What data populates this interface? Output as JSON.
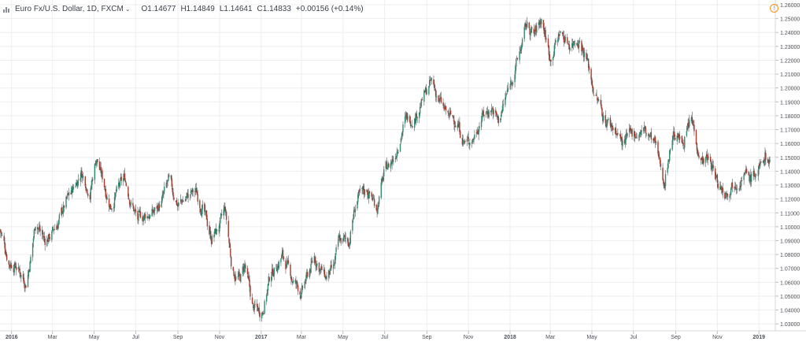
{
  "header": {
    "title": "Euro Fx/U.S. Dollar, 1D, FXCM",
    "chevron": "⌄",
    "open": "O1.14677",
    "high": "H1.14849",
    "low": "L1.14641",
    "close": "C1.14833",
    "change": "+0.00156 (+0.14%)",
    "warning_glyph": "!"
  },
  "colors": {
    "up": "#2f8a6e",
    "down": "#a23b2a",
    "grid": "#eeeeee",
    "axis_text": "#4a4f59",
    "wick": "#55595f"
  },
  "chart_data": {
    "type": "candlestick",
    "symbol": "Euro Fx/U.S. Dollar",
    "interval": "1D",
    "source": "FXCM",
    "ylim": [
      1.025,
      1.26
    ],
    "yticks": [
      1.03,
      1.04,
      1.05,
      1.06,
      1.07,
      1.08,
      1.09,
      1.1,
      1.11,
      1.12,
      1.13,
      1.14,
      1.15,
      1.16,
      1.17,
      1.18,
      1.19,
      1.2,
      1.21,
      1.22,
      1.23,
      1.24,
      1.25,
      1.26
    ],
    "ytick_labels": [
      "1.03000",
      "1.04000",
      "1.05000",
      "1.06000",
      "1.07000",
      "1.08000",
      "1.09000",
      "1.10000",
      "1.11000",
      "1.12000",
      "1.13000",
      "1.14000",
      "1.15000",
      "1.16000",
      "1.17000",
      "1.18000",
      "1.19000",
      "1.20000",
      "1.21000",
      "1.22000",
      "1.23000",
      "1.24000",
      "1.25000",
      "1.26000"
    ],
    "xlim": [
      "2015-12-15",
      "2019-01-25"
    ],
    "xticks": [
      {
        "date": "2016-01-01",
        "label": "2016",
        "bold": true
      },
      {
        "date": "2016-03-01",
        "label": "Mar"
      },
      {
        "date": "2016-05-01",
        "label": "May"
      },
      {
        "date": "2016-07-01",
        "label": "Jul"
      },
      {
        "date": "2016-09-01",
        "label": "Sep"
      },
      {
        "date": "2016-11-01",
        "label": "Nov"
      },
      {
        "date": "2017-01-01",
        "label": "2017",
        "bold": true
      },
      {
        "date": "2017-03-01",
        "label": "Mar"
      },
      {
        "date": "2017-05-01",
        "label": "May"
      },
      {
        "date": "2017-07-01",
        "label": "Jul"
      },
      {
        "date": "2017-09-01",
        "label": "Sep"
      },
      {
        "date": "2017-11-01",
        "label": "Nov"
      },
      {
        "date": "2018-01-01",
        "label": "2018",
        "bold": true
      },
      {
        "date": "2018-03-01",
        "label": "Mar"
      },
      {
        "date": "2018-05-01",
        "label": "May"
      },
      {
        "date": "2018-07-01",
        "label": "Jul"
      },
      {
        "date": "2018-09-01",
        "label": "Sep"
      },
      {
        "date": "2018-11-01",
        "label": "Nov"
      },
      {
        "date": "2019-01-01",
        "label": "2019",
        "bold": true
      }
    ],
    "close_path": [
      [
        "2015-12-15",
        1.098
      ],
      [
        "2015-12-28",
        1.075
      ],
      [
        "2016-01-08",
        1.072
      ],
      [
        "2016-01-22",
        1.06
      ],
      [
        "2016-01-30",
        1.08
      ],
      [
        "2016-02-05",
        1.104
      ],
      [
        "2016-02-19",
        1.09
      ],
      [
        "2016-02-29",
        1.095
      ],
      [
        "2016-03-10",
        1.104
      ],
      [
        "2016-03-21",
        1.118
      ],
      [
        "2016-04-01",
        1.128
      ],
      [
        "2016-04-12",
        1.14
      ],
      [
        "2016-04-25",
        1.125
      ],
      [
        "2016-05-04",
        1.15
      ],
      [
        "2016-05-13",
        1.135
      ],
      [
        "2016-05-25",
        1.115
      ],
      [
        "2016-06-05",
        1.127
      ],
      [
        "2016-06-15",
        1.135
      ],
      [
        "2016-06-24",
        1.118
      ],
      [
        "2016-07-04",
        1.105
      ],
      [
        "2016-07-15",
        1.108
      ],
      [
        "2016-07-27",
        1.11
      ],
      [
        "2016-08-08",
        1.118
      ],
      [
        "2016-08-18",
        1.132
      ],
      [
        "2016-09-01",
        1.116
      ],
      [
        "2016-09-15",
        1.122
      ],
      [
        "2016-09-28",
        1.125
      ],
      [
        "2016-10-08",
        1.112
      ],
      [
        "2016-10-20",
        1.092
      ],
      [
        "2016-11-01",
        1.1
      ],
      [
        "2016-11-09",
        1.112
      ],
      [
        "2016-11-20",
        1.068
      ],
      [
        "2016-12-01",
        1.062
      ],
      [
        "2016-12-08",
        1.072
      ],
      [
        "2016-12-20",
        1.041
      ],
      [
        "2017-01-03",
        1.04
      ],
      [
        "2017-01-15",
        1.066
      ],
      [
        "2017-02-01",
        1.079
      ],
      [
        "2017-02-15",
        1.063
      ],
      [
        "2017-03-01",
        1.052
      ],
      [
        "2017-03-20",
        1.078
      ],
      [
        "2017-04-05",
        1.063
      ],
      [
        "2017-04-17",
        1.068
      ],
      [
        "2017-04-25",
        1.09
      ],
      [
        "2017-05-10",
        1.09
      ],
      [
        "2017-05-20",
        1.118
      ],
      [
        "2017-06-05",
        1.127
      ],
      [
        "2017-06-20",
        1.115
      ],
      [
        "2017-07-01",
        1.14
      ],
      [
        "2017-07-15",
        1.15
      ],
      [
        "2017-07-30",
        1.176
      ],
      [
        "2017-08-15",
        1.18
      ],
      [
        "2017-08-30",
        1.196
      ],
      [
        "2017-09-08",
        1.204
      ],
      [
        "2017-09-20",
        1.19
      ],
      [
        "2017-10-01",
        1.18
      ],
      [
        "2017-10-15",
        1.176
      ],
      [
        "2017-10-27",
        1.16
      ],
      [
        "2017-11-08",
        1.164
      ],
      [
        "2017-11-20",
        1.18
      ],
      [
        "2017-12-05",
        1.186
      ],
      [
        "2017-12-15",
        1.176
      ],
      [
        "2017-12-30",
        1.2
      ],
      [
        "2018-01-12",
        1.22
      ],
      [
        "2018-01-25",
        1.245
      ],
      [
        "2018-02-05",
        1.238
      ],
      [
        "2018-02-16",
        1.25
      ],
      [
        "2018-03-01",
        1.222
      ],
      [
        "2018-03-15",
        1.24
      ],
      [
        "2018-03-29",
        1.232
      ],
      [
        "2018-04-12",
        1.236
      ],
      [
        "2018-04-24",
        1.22
      ],
      [
        "2018-05-05",
        1.196
      ],
      [
        "2018-05-20",
        1.178
      ],
      [
        "2018-06-05",
        1.17
      ],
      [
        "2018-06-15",
        1.16
      ],
      [
        "2018-06-29",
        1.166
      ],
      [
        "2018-07-15",
        1.17
      ],
      [
        "2018-08-01",
        1.16
      ],
      [
        "2018-08-15",
        1.133
      ],
      [
        "2018-08-28",
        1.168
      ],
      [
        "2018-09-10",
        1.16
      ],
      [
        "2018-09-24",
        1.177
      ],
      [
        "2018-10-08",
        1.149
      ],
      [
        "2018-10-20",
        1.148
      ],
      [
        "2018-11-01",
        1.132
      ],
      [
        "2018-11-12",
        1.125
      ],
      [
        "2018-11-28",
        1.134
      ],
      [
        "2018-12-10",
        1.138
      ],
      [
        "2018-12-20",
        1.135
      ],
      [
        "2019-01-03",
        1.142
      ],
      [
        "2019-01-10",
        1.152
      ],
      [
        "2019-01-17",
        1.145
      ]
    ],
    "last": {
      "open": 1.14677,
      "high": 1.14849,
      "low": 1.14641,
      "close": 1.14833
    }
  }
}
